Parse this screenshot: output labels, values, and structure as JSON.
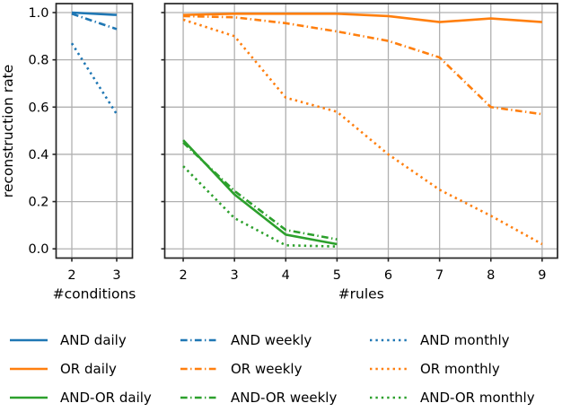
{
  "figure": {
    "ylabel": "reconstruction rate",
    "colors": {
      "blue": "#1f77b4",
      "orange": "#ff7f0e",
      "green": "#2ca02c",
      "grid": "#b0b0b0",
      "spine": "#262626",
      "text": "#000000"
    }
  },
  "chart_data": [
    {
      "id": "conditions",
      "type": "line",
      "title": "",
      "xlabel": "#conditions",
      "ylabel": "reconstruction rate",
      "x_ticks": [
        2,
        3
      ],
      "y_ticks": [
        0.0,
        0.2,
        0.4,
        0.6,
        0.8,
        1.0
      ],
      "y_tick_labels": [
        "0.0",
        "0.2",
        "0.4",
        "0.6",
        "0.8",
        "1.0"
      ],
      "xlim": [
        1.65,
        3.35
      ],
      "ylim": [
        -0.039,
        1.038
      ],
      "grid": true,
      "series": [
        {
          "name": "AND daily",
          "color": "#1f77b4",
          "style": "solid",
          "x": [
            2,
            3
          ],
          "y": [
            1.0,
            0.99
          ]
        },
        {
          "name": "AND weekly",
          "color": "#1f77b4",
          "style": "dashdot",
          "x": [
            2,
            3
          ],
          "y": [
            0.995,
            0.93
          ]
        },
        {
          "name": "AND monthly",
          "color": "#1f77b4",
          "style": "dotted",
          "x": [
            2,
            3
          ],
          "y": [
            0.87,
            0.57
          ]
        }
      ]
    },
    {
      "id": "rules",
      "type": "line",
      "title": "",
      "xlabel": "#rules",
      "ylabel": "",
      "x_ticks": [
        2,
        3,
        4,
        5,
        6,
        7,
        8,
        9
      ],
      "y_ticks": [
        0.0,
        0.2,
        0.4,
        0.6,
        0.8,
        1.0
      ],
      "y_tick_labels": [],
      "xlim": [
        1.64,
        9.3
      ],
      "ylim": [
        -0.039,
        1.038
      ],
      "grid": true,
      "series": [
        {
          "name": "OR daily",
          "color": "#ff7f0e",
          "style": "solid",
          "x": [
            2,
            3,
            4,
            5,
            6,
            7,
            8,
            9
          ],
          "y": [
            0.99,
            0.995,
            0.995,
            0.995,
            0.985,
            0.96,
            0.975,
            0.96
          ]
        },
        {
          "name": "OR weekly",
          "color": "#ff7f0e",
          "style": "dashdot",
          "x": [
            2,
            3,
            4,
            5,
            6,
            7,
            8,
            9
          ],
          "y": [
            0.985,
            0.98,
            0.955,
            0.92,
            0.88,
            0.81,
            0.6,
            0.57
          ]
        },
        {
          "name": "OR monthly",
          "color": "#ff7f0e",
          "style": "dotted",
          "x": [
            2,
            3,
            4,
            5,
            6,
            7,
            8,
            9
          ],
          "y": [
            0.97,
            0.9,
            0.64,
            0.58,
            0.4,
            0.25,
            0.14,
            0.02
          ]
        },
        {
          "name": "AND-OR daily",
          "color": "#2ca02c",
          "style": "solid",
          "x": [
            2,
            3,
            4,
            5
          ],
          "y": [
            0.46,
            0.23,
            0.06,
            0.02
          ]
        },
        {
          "name": "AND-OR weekly",
          "color": "#2ca02c",
          "style": "dashdot",
          "x": [
            2,
            3,
            4,
            5
          ],
          "y": [
            0.45,
            0.245,
            0.08,
            0.04
          ]
        },
        {
          "name": "AND-OR monthly",
          "color": "#2ca02c",
          "style": "dotted",
          "x": [
            2,
            3,
            4,
            5
          ],
          "y": [
            0.35,
            0.13,
            0.015,
            0.01
          ]
        }
      ]
    }
  ],
  "legend": {
    "position": "bottom",
    "columns": 3,
    "items": [
      {
        "label": "AND daily",
        "color": "#1f77b4",
        "style": "solid"
      },
      {
        "label": "AND weekly",
        "color": "#1f77b4",
        "style": "dashdot"
      },
      {
        "label": "AND monthly",
        "color": "#1f77b4",
        "style": "dotted"
      },
      {
        "label": "OR daily",
        "color": "#ff7f0e",
        "style": "solid"
      },
      {
        "label": "OR weekly",
        "color": "#ff7f0e",
        "style": "dashdot"
      },
      {
        "label": "OR monthly",
        "color": "#ff7f0e",
        "style": "dotted"
      },
      {
        "label": "AND-OR daily",
        "color": "#2ca02c",
        "style": "solid"
      },
      {
        "label": "AND-OR weekly",
        "color": "#2ca02c",
        "style": "dashdot"
      },
      {
        "label": "AND-OR monthly",
        "color": "#2ca02c",
        "style": "dotted"
      }
    ]
  }
}
